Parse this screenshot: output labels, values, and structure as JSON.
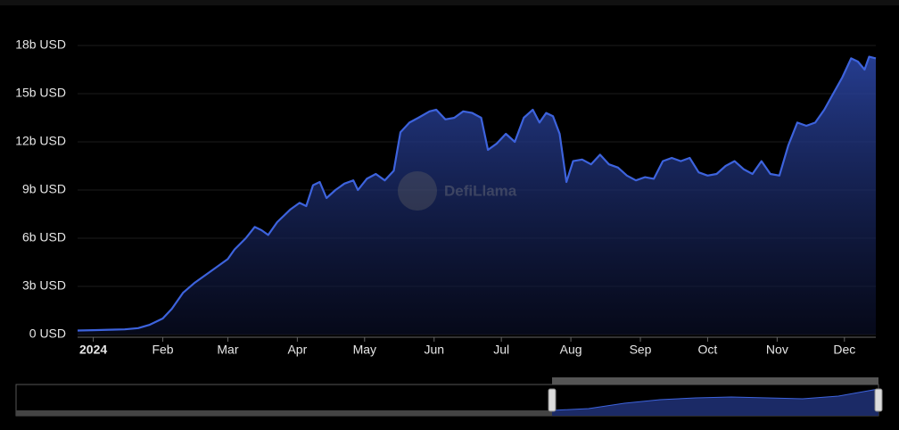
{
  "chart_data": {
    "type": "area",
    "watermark": "DefiLlama",
    "color": "#3d63dd",
    "x": [
      -7,
      0,
      7,
      14,
      20,
      25,
      31,
      35,
      40,
      45,
      50,
      55,
      60,
      63,
      68,
      72,
      75,
      78,
      82,
      88,
      92,
      95,
      98,
      101,
      104,
      108,
      112,
      116,
      118,
      122,
      126,
      130,
      134,
      137,
      141,
      145,
      150,
      153,
      157,
      161,
      165,
      169,
      173,
      176,
      180,
      184,
      188,
      192,
      196,
      199,
      202,
      205,
      208,
      211,
      214,
      218,
      222,
      226,
      230,
      234,
      238,
      242,
      246,
      250,
      254,
      258,
      262,
      266,
      270,
      274,
      278,
      282,
      286,
      290,
      294,
      298,
      302,
      306,
      310,
      314,
      318,
      322,
      326,
      330,
      334,
      338,
      341,
      344,
      346,
      349
    ],
    "values": [
      0.25,
      0.27,
      0.3,
      0.32,
      0.4,
      0.6,
      1.0,
      1.6,
      2.6,
      3.2,
      3.7,
      4.2,
      4.7,
      5.3,
      6.0,
      6.7,
      6.5,
      6.2,
      7.0,
      7.8,
      8.2,
      8.0,
      9.3,
      9.5,
      8.5,
      9.0,
      9.4,
      9.6,
      9.0,
      9.7,
      10.0,
      9.6,
      10.2,
      12.6,
      13.2,
      13.5,
      13.9,
      14.0,
      13.4,
      13.5,
      13.9,
      13.8,
      13.5,
      11.5,
      11.9,
      12.5,
      12.0,
      13.5,
      14.0,
      13.2,
      13.8,
      13.6,
      12.5,
      9.5,
      10.8,
      10.9,
      10.6,
      11.2,
      10.6,
      10.4,
      9.9,
      9.6,
      9.8,
      9.7,
      10.8,
      11.0,
      10.8,
      11.0,
      10.1,
      9.9,
      10.0,
      10.5,
      10.8,
      10.3,
      10.0,
      10.8,
      10.0,
      9.9,
      11.8,
      13.2,
      13.0,
      13.2,
      14.0,
      15.0,
      16.0,
      17.2,
      17.0,
      16.5,
      17.3,
      17.2
    ],
    "xlim": [
      -7,
      349
    ],
    "xticks": [
      {
        "value": 0,
        "label": "2024"
      },
      {
        "value": 31,
        "label": "Feb"
      },
      {
        "value": 60,
        "label": "Mar"
      },
      {
        "value": 91,
        "label": "Apr"
      },
      {
        "value": 121,
        "label": "May"
      },
      {
        "value": 152,
        "label": "Jun"
      },
      {
        "value": 182,
        "label": "Jul"
      },
      {
        "value": 213,
        "label": "Aug"
      },
      {
        "value": 244,
        "label": "Sep"
      },
      {
        "value": 274,
        "label": "Oct"
      },
      {
        "value": 305,
        "label": "Nov"
      },
      {
        "value": 335,
        "label": "Dec"
      }
    ],
    "ylim": [
      0,
      18
    ],
    "yticks": [
      {
        "value": 0,
        "label": "0 USD"
      },
      {
        "value": 3,
        "label": "3b USD"
      },
      {
        "value": 6,
        "label": "6b USD"
      },
      {
        "value": 9,
        "label": "9b USD"
      },
      {
        "value": 12,
        "label": "12b USD"
      },
      {
        "value": 15,
        "label": "15b USD"
      },
      {
        "value": 18,
        "label": "18b USD"
      }
    ],
    "grid": true
  }
}
